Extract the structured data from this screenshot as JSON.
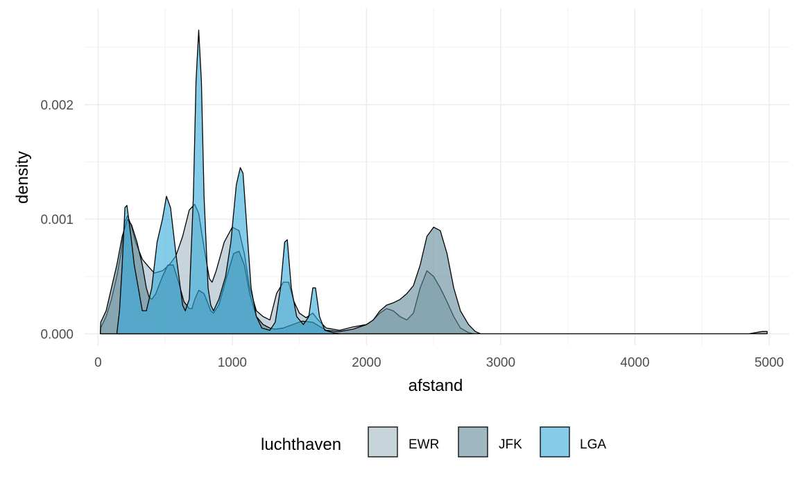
{
  "chart_data": {
    "type": "area",
    "xlabel": "afstand",
    "ylabel": "density",
    "xlim": [
      -100,
      5150
    ],
    "ylim": [
      -0.0001,
      0.00284
    ],
    "x_ticks": [
      0,
      1000,
      2000,
      3000,
      4000,
      5000
    ],
    "x_tick_labels": [
      "0",
      "1000",
      "2000",
      "3000",
      "4000",
      "5000"
    ],
    "y_ticks": [
      0,
      0.001,
      0.002
    ],
    "y_tick_labels": [
      "0.000",
      "0.001",
      "0.002"
    ],
    "grid": true,
    "legend_position": "bottom",
    "legend_title": "luchthaven",
    "series": [
      {
        "name": "EWR",
        "color": "#a3b8c5",
        "points": [
          [
            17,
            0
          ],
          [
            20,
            5e-05
          ],
          [
            60,
            0.00015
          ],
          [
            100,
            0.0003
          ],
          [
            140,
            0.0005
          ],
          [
            170,
            0.0007
          ],
          [
            200,
            0.00098
          ],
          [
            220,
            0.00103
          ],
          [
            245,
            0.00095
          ],
          [
            280,
            0.0008
          ],
          [
            330,
            0.00065
          ],
          [
            380,
            0.00058
          ],
          [
            420,
            0.00053
          ],
          [
            480,
            0.00055
          ],
          [
            530,
            0.0006
          ],
          [
            580,
            0.00068
          ],
          [
            630,
            0.00085
          ],
          [
            680,
            0.00108
          ],
          [
            720,
            0.00113
          ],
          [
            750,
            0.00105
          ],
          [
            790,
            0.00075
          ],
          [
            830,
            0.00048
          ],
          [
            850,
            0.00045
          ],
          [
            880,
            0.00055
          ],
          [
            940,
            0.0008
          ],
          [
            1000,
            0.00093
          ],
          [
            1050,
            0.0009
          ],
          [
            1090,
            0.0007
          ],
          [
            1130,
            0.0004
          ],
          [
            1180,
            0.0002
          ],
          [
            1230,
            0.00015
          ],
          [
            1280,
            0.00012
          ],
          [
            1330,
            0.00035
          ],
          [
            1380,
            0.00045
          ],
          [
            1420,
            0.00045
          ],
          [
            1460,
            0.00028
          ],
          [
            1500,
            0.00018
          ],
          [
            1550,
            0.00014
          ],
          [
            1600,
            0.00018
          ],
          [
            1640,
            0.00012
          ],
          [
            1700,
            5e-05
          ],
          [
            1800,
            3e-05
          ],
          [
            1900,
            6e-05
          ],
          [
            2000,
            8e-05
          ],
          [
            2050,
            0.00012
          ],
          [
            2100,
            0.00018
          ],
          [
            2150,
            0.00022
          ],
          [
            2200,
            0.0002
          ],
          [
            2250,
            0.00015
          ],
          [
            2300,
            0.00012
          ],
          [
            2350,
            0.00018
          ],
          [
            2400,
            0.0004
          ],
          [
            2450,
            0.00055
          ],
          [
            2500,
            0.0005
          ],
          [
            2550,
            0.0004
          ],
          [
            2600,
            0.00028
          ],
          [
            2650,
            0.00015
          ],
          [
            2700,
            5e-05
          ],
          [
            2760,
            1e-05
          ],
          [
            2800,
            0
          ]
        ]
      },
      {
        "name": "JFK",
        "color": "#5e8796",
        "points": [
          [
            17,
            0
          ],
          [
            20,
            0.0001
          ],
          [
            60,
            0.0002
          ],
          [
            100,
            0.0004
          ],
          [
            140,
            0.0006
          ],
          [
            180,
            0.00085
          ],
          [
            220,
            0.001
          ],
          [
            250,
            0.00095
          ],
          [
            290,
            0.0008
          ],
          [
            330,
            0.0006
          ],
          [
            360,
            0.0004
          ],
          [
            380,
            0.00032
          ],
          [
            400,
            0.0003
          ],
          [
            430,
            0.00035
          ],
          [
            480,
            0.0005
          ],
          [
            520,
            0.0006
          ],
          [
            560,
            0.0006
          ],
          [
            600,
            0.00045
          ],
          [
            640,
            0.00028
          ],
          [
            680,
            0.00022
          ],
          [
            700,
            0.00022
          ],
          [
            720,
            0.0003
          ],
          [
            750,
            0.00038
          ],
          [
            790,
            0.00035
          ],
          [
            840,
            0.0002
          ],
          [
            860,
            0.00018
          ],
          [
            900,
            0.00025
          ],
          [
            960,
            0.0005
          ],
          [
            1010,
            0.0007
          ],
          [
            1050,
            0.00072
          ],
          [
            1090,
            0.0006
          ],
          [
            1130,
            0.00035
          ],
          [
            1180,
            0.00015
          ],
          [
            1230,
            8e-05
          ],
          [
            1280,
            5e-05
          ],
          [
            1320,
            4e-05
          ],
          [
            1380,
            5e-05
          ],
          [
            1450,
            8e-05
          ],
          [
            1520,
            0.00011
          ],
          [
            1600,
            0.0001
          ],
          [
            1700,
            3e-05
          ],
          [
            1800,
            2e-05
          ],
          [
            1900,
            4e-05
          ],
          [
            2000,
            8e-05
          ],
          [
            2050,
            0.00012
          ],
          [
            2100,
            0.0002
          ],
          [
            2150,
            0.00025
          ],
          [
            2200,
            0.00027
          ],
          [
            2250,
            0.0003
          ],
          [
            2300,
            0.00035
          ],
          [
            2350,
            0.00042
          ],
          [
            2400,
            0.0006
          ],
          [
            2450,
            0.00085
          ],
          [
            2500,
            0.00093
          ],
          [
            2550,
            0.0009
          ],
          [
            2600,
            0.0007
          ],
          [
            2650,
            0.0004
          ],
          [
            2700,
            0.0002
          ],
          [
            2760,
            8e-05
          ],
          [
            2810,
            2e-05
          ],
          [
            2850,
            0
          ],
          [
            4850,
            0
          ],
          [
            4900,
            1e-05
          ],
          [
            4950,
            2e-05
          ],
          [
            4985,
            2e-05
          ],
          [
            4985,
            0
          ]
        ]
      },
      {
        "name": "LGA",
        "color": "#33aad8",
        "points": [
          [
            140,
            0
          ],
          [
            160,
            0.0002
          ],
          [
            180,
            0.0006
          ],
          [
            200,
            0.0011
          ],
          [
            215,
            0.00112
          ],
          [
            240,
            0.0009
          ],
          [
            270,
            0.0006
          ],
          [
            300,
            0.0004
          ],
          [
            330,
            0.0002
          ],
          [
            360,
            0.0002
          ],
          [
            400,
            0.0004
          ],
          [
            440,
            0.0008
          ],
          [
            480,
            0.001
          ],
          [
            510,
            0.0012
          ],
          [
            540,
            0.0011
          ],
          [
            580,
            0.0007
          ],
          [
            630,
            0.00025
          ],
          [
            650,
            0.0002
          ],
          [
            680,
            0.0003
          ],
          [
            710,
            0.0012
          ],
          [
            730,
            0.0022
          ],
          [
            750,
            0.00265
          ],
          [
            770,
            0.0022
          ],
          [
            790,
            0.0012
          ],
          [
            820,
            0.0004
          ],
          [
            840,
            0.00025
          ],
          [
            860,
            0.0002
          ],
          [
            900,
            0.0003
          ],
          [
            950,
            0.0005
          ],
          [
            990,
            0.0008
          ],
          [
            1030,
            0.0013
          ],
          [
            1060,
            0.00145
          ],
          [
            1080,
            0.0014
          ],
          [
            1110,
            0.0009
          ],
          [
            1140,
            0.0004
          ],
          [
            1180,
            0.00015
          ],
          [
            1220,
            5e-05
          ],
          [
            1280,
            3e-05
          ],
          [
            1320,
            0.0001
          ],
          [
            1360,
            0.0004
          ],
          [
            1390,
            0.0008
          ],
          [
            1410,
            0.00082
          ],
          [
            1440,
            0.0004
          ],
          [
            1480,
            0.00015
          ],
          [
            1530,
            8e-05
          ],
          [
            1570,
            0.00015
          ],
          [
            1600,
            0.0004
          ],
          [
            1620,
            0.0004
          ],
          [
            1650,
            0.00015
          ],
          [
            1690,
            3e-05
          ],
          [
            1750,
            1e-05
          ],
          [
            1800,
            0
          ]
        ]
      }
    ]
  }
}
